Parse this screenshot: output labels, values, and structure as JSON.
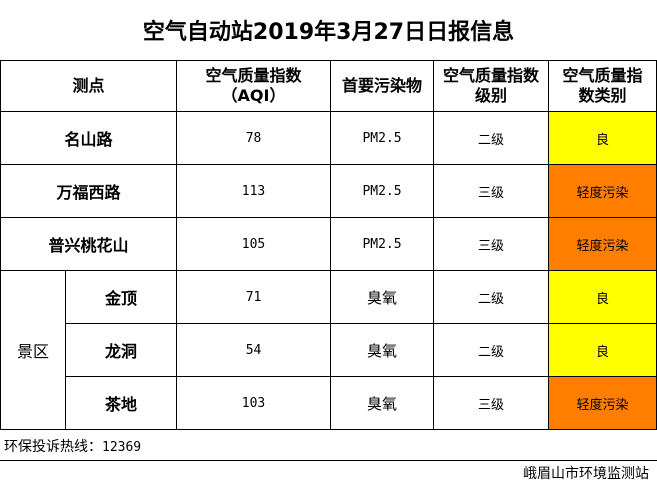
{
  "title": "空气自动站2019年3月27日日报信息",
  "headers": {
    "station": "测点",
    "aqi_line1": "空气质量指数",
    "aqi_line2": "（AQI）",
    "pollutant": "首要污染物",
    "level_line1": "空气质量指数",
    "level_line2": "级别",
    "category_line1": "空气质量指",
    "category_line2": "数类别"
  },
  "group_label": "景区",
  "colors": {
    "good": "#ffff00",
    "light_pollution": "#ff7e00",
    "border": "#000000"
  },
  "rows": [
    {
      "station": "名山路",
      "aqi": "78",
      "pollutant": "PM2.5",
      "level": "二级",
      "category": "良",
      "color": "#ffff00"
    },
    {
      "station": "万福西路",
      "aqi": "113",
      "pollutant": "PM2.5",
      "level": "三级",
      "category": "轻度污染",
      "color": "#ff7e00"
    },
    {
      "station": "普兴桃花山",
      "aqi": "105",
      "pollutant": "PM2.5",
      "level": "三级",
      "category": "轻度污染",
      "color": "#ff7e00"
    },
    {
      "station": "金顶",
      "aqi": "71",
      "pollutant": "臭氧",
      "level": "二级",
      "category": "良",
      "color": "#ffff00"
    },
    {
      "station": "龙洞",
      "aqi": "54",
      "pollutant": "臭氧",
      "level": "二级",
      "category": "良",
      "color": "#ffff00"
    },
    {
      "station": "茶地",
      "aqi": "103",
      "pollutant": "臭氧",
      "level": "三级",
      "category": "轻度污染",
      "color": "#ff7e00"
    }
  ],
  "hotline": {
    "label": "环保投诉热线：",
    "number": "12369"
  },
  "organization": "峨眉山市环境监测站"
}
